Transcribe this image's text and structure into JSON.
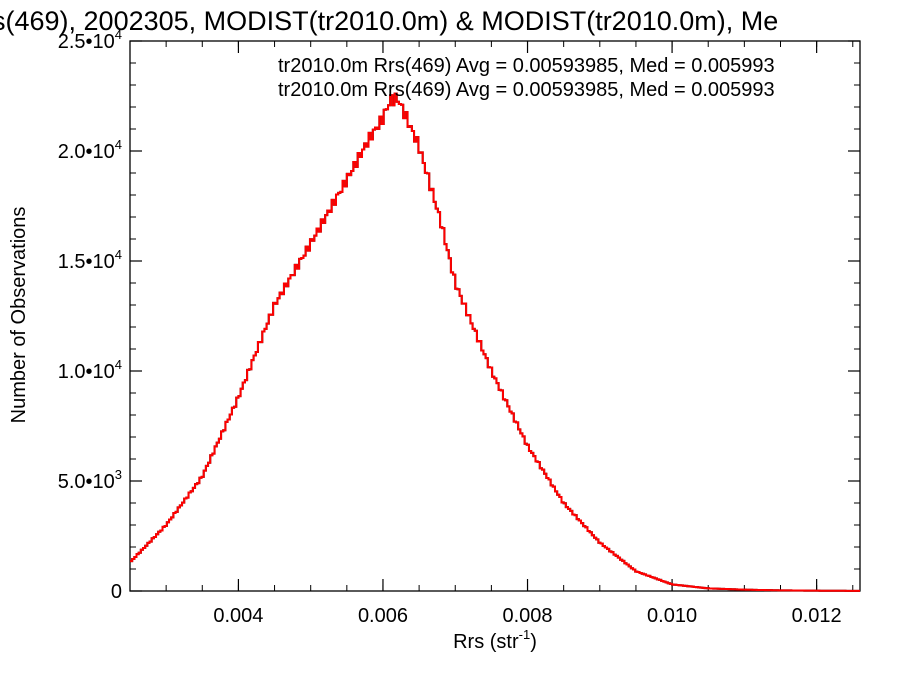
{
  "chart_data": {
    "type": "line",
    "style": "step-histogram",
    "title": "s(469), 2002305, MODIST(tr2010.0m) & MODIST(tr2010.0m), Me",
    "xlabel": "Rrs (str",
    "xlabel_sup": "-1",
    "xlabel_end": ")",
    "ylabel": "Number of Observations",
    "xlim": [
      0.0025,
      0.0126
    ],
    "ylim": [
      0,
      25000
    ],
    "x_ticks": [
      {
        "value": 0.004,
        "label": "0.004"
      },
      {
        "value": 0.006,
        "label": "0.006"
      },
      {
        "value": 0.008,
        "label": "0.008"
      },
      {
        "value": 0.01,
        "label": "0.010"
      },
      {
        "value": 0.012,
        "label": "0.012"
      }
    ],
    "y_ticks": [
      {
        "value": 0,
        "base": "0",
        "exp": ""
      },
      {
        "value": 5000,
        "base": "5.0•10",
        "exp": "3"
      },
      {
        "value": 10000,
        "base": "1.0•10",
        "exp": "4"
      },
      {
        "value": 15000,
        "base": "1.5•10",
        "exp": "4"
      },
      {
        "value": 20000,
        "base": "2.0•10",
        "exp": "4"
      },
      {
        "value": 25000,
        "base": "2.5•10",
        "exp": "4"
      }
    ],
    "legend": [
      {
        "text": "tr2010.0m Rrs(469) Avg = 0.00593985, Med = 0.005993",
        "color": "#000000"
      },
      {
        "text": "tr2010.0m Rrs(469) Avg = 0.00593985, Med = 0.005993",
        "color": "#ff0000"
      }
    ],
    "legend_position": "top-right",
    "series": [
      {
        "color": "#ff0000",
        "x": [
          0.0025,
          0.003,
          0.0035,
          0.004,
          0.0045,
          0.005,
          0.0055,
          0.0058,
          0.006,
          0.0061,
          0.0062,
          0.0063,
          0.0065,
          0.0068,
          0.007,
          0.0075,
          0.008,
          0.0085,
          0.009,
          0.0095,
          0.01,
          0.0105,
          0.011,
          0.0115,
          0.012,
          0.0126
        ],
        "y": [
          1300,
          3000,
          5200,
          8800,
          13000,
          15800,
          18700,
          20500,
          21500,
          22300,
          22400,
          21700,
          20200,
          16800,
          14000,
          10000,
          6600,
          4000,
          2200,
          900,
          300,
          120,
          60,
          30,
          15,
          5
        ]
      },
      {
        "color": "#000000",
        "x": [
          0.0025,
          0.003,
          0.0035,
          0.004,
          0.0045,
          0.005,
          0.0055,
          0.0058,
          0.006,
          0.0061,
          0.0062,
          0.0063,
          0.0065,
          0.0068,
          0.007,
          0.0075,
          0.008,
          0.0085,
          0.009,
          0.0095,
          0.01,
          0.0105,
          0.011,
          0.0115,
          0.012,
          0.0126
        ],
        "y": [
          1300,
          3000,
          5200,
          8800,
          13000,
          15800,
          18700,
          20500,
          21500,
          22300,
          22400,
          21700,
          20200,
          16800,
          14000,
          10000,
          6600,
          4000,
          2200,
          900,
          300,
          120,
          60,
          30,
          15,
          5
        ]
      }
    ]
  }
}
